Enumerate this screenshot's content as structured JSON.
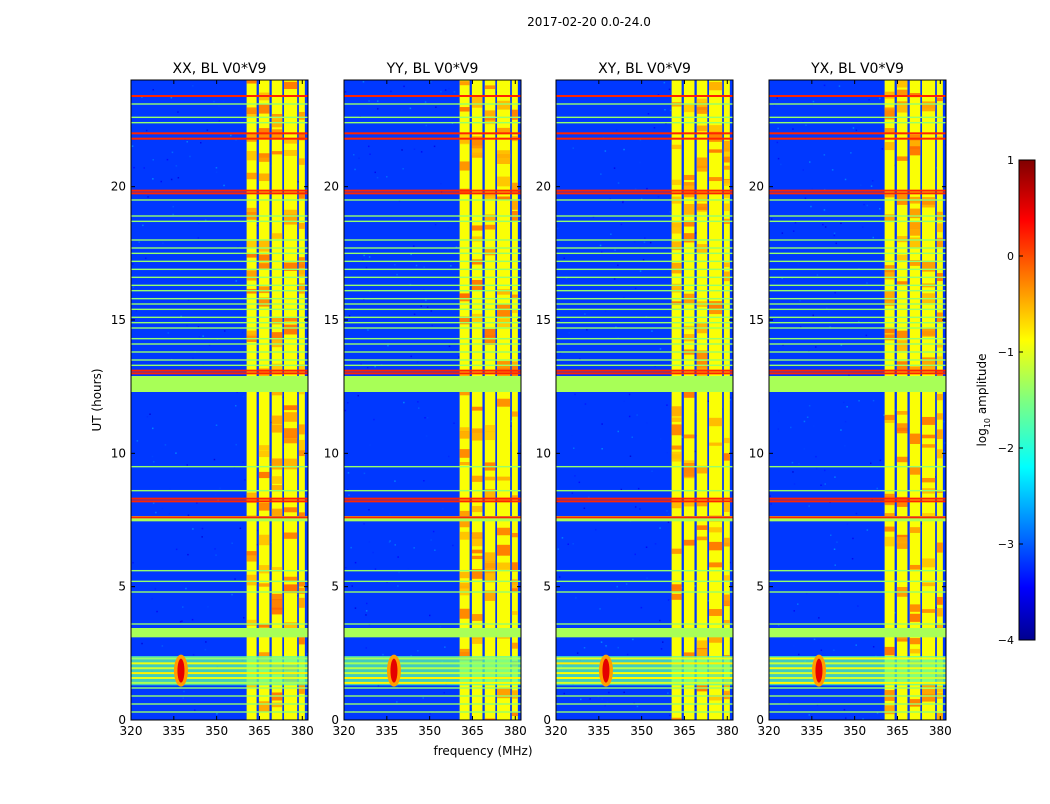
{
  "chart_data": {
    "type": "heatmap",
    "suptitle": "2017-02-20 0.0-24.0",
    "xlabel": "frequency (MHz)",
    "ylabel": "UT (hours)",
    "xlim": [
      320,
      382
    ],
    "ylim": [
      0,
      24
    ],
    "xticks": [
      320,
      335,
      350,
      365,
      380
    ],
    "yticks": [
      0,
      5,
      10,
      15,
      20
    ],
    "colormap": "jet",
    "colorbar": {
      "label_prefix": "log",
      "label_sub": "10",
      "label_suffix": " amplitude",
      "range": [
        -4,
        1
      ],
      "ticks": [
        1,
        0,
        -1,
        -2,
        -3,
        -4
      ],
      "tick_labels": [
        "1",
        "0",
        "−1",
        "−2",
        "−3",
        "−4"
      ]
    },
    "panels": [
      {
        "title": "XX, BL V0*V9",
        "polarization": "XX"
      },
      {
        "title": "YY, BL V0*V9",
        "polarization": "YY"
      },
      {
        "title": "XY, BL V0*V9",
        "polarization": "XY"
      },
      {
        "title": "YX, BL V0*V9",
        "polarization": "YX"
      }
    ],
    "features": {
      "background_level": -3.1,
      "flagged_level": -1.3,
      "flagged_time_bands": [
        [
          12.3,
          12.9
        ],
        [
          3.1,
          3.45
        ],
        [
          7.45,
          7.65
        ]
      ],
      "rfi_channel_bands": [
        [
          360.5,
          364.0
        ],
        [
          364.8,
          368.5
        ],
        [
          369.3,
          373.0
        ],
        [
          373.6,
          378.2
        ],
        [
          378.8,
          380.9
        ]
      ],
      "hot_time_lines": [
        23.4,
        22.0,
        21.8,
        19.85,
        19.75,
        13.1,
        13.0,
        8.3,
        8.2,
        7.6
      ],
      "warm_time_lines": [
        23.1,
        22.6,
        22.4,
        19.5,
        18.9,
        18.7,
        18.0,
        17.7,
        17.5,
        17.2,
        16.9,
        16.6,
        16.3,
        16.1,
        15.8,
        15.6,
        15.4,
        15.1,
        14.9,
        14.7,
        14.3,
        14.1,
        13.8,
        13.5,
        13.3,
        9.5,
        8.6,
        5.6,
        5.2,
        4.8,
        3.6,
        1.2,
        0.9,
        0.6,
        0.3
      ],
      "low_band_rfi_time_range": [
        1.3,
        2.4
      ],
      "strong_source_frequency": 337.5
    }
  }
}
